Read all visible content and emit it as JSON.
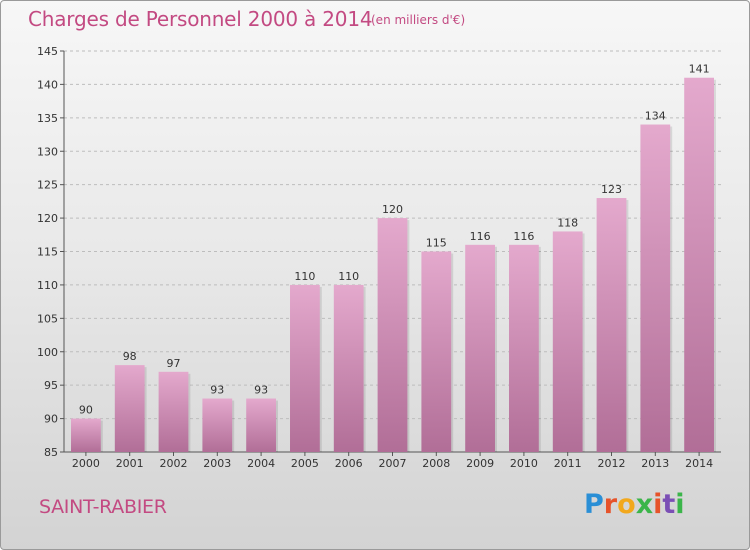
{
  "header": {
    "title": "Charges de Personnel 2000 à 2014",
    "subtitle": "(en milliers d'€)"
  },
  "footer": {
    "town": "SAINT-RABIER",
    "logo": {
      "letters": [
        "P",
        "r",
        "o",
        "x",
        "i",
        "t",
        "i"
      ],
      "colors": [
        "#2a8fd6",
        "#e6532a",
        "#f2a81d",
        "#3bb54a",
        "#e6532a",
        "#7b4fb5",
        "#3bb54a"
      ]
    }
  },
  "chart_data": {
    "type": "bar",
    "categories": [
      "2000",
      "2001",
      "2002",
      "2003",
      "2004",
      "2005",
      "2006",
      "2007",
      "2008",
      "2009",
      "2010",
      "2011",
      "2012",
      "2013",
      "2014"
    ],
    "values": [
      90,
      98,
      97,
      93,
      93,
      110,
      110,
      120,
      115,
      116,
      116,
      118,
      123,
      134,
      141
    ],
    "data_labels": [
      "90",
      "98",
      "97",
      "93",
      "93",
      "110",
      "110",
      "120",
      "115",
      "116",
      "116",
      "118",
      "123",
      "134",
      "141"
    ],
    "ylim": [
      85,
      145
    ],
    "yticks": [
      85,
      90,
      95,
      100,
      105,
      110,
      115,
      120,
      125,
      130,
      135,
      140,
      145
    ],
    "grid": true,
    "bar_color_top": "#e4a9cd",
    "bar_color_bottom": "#b16e97"
  }
}
